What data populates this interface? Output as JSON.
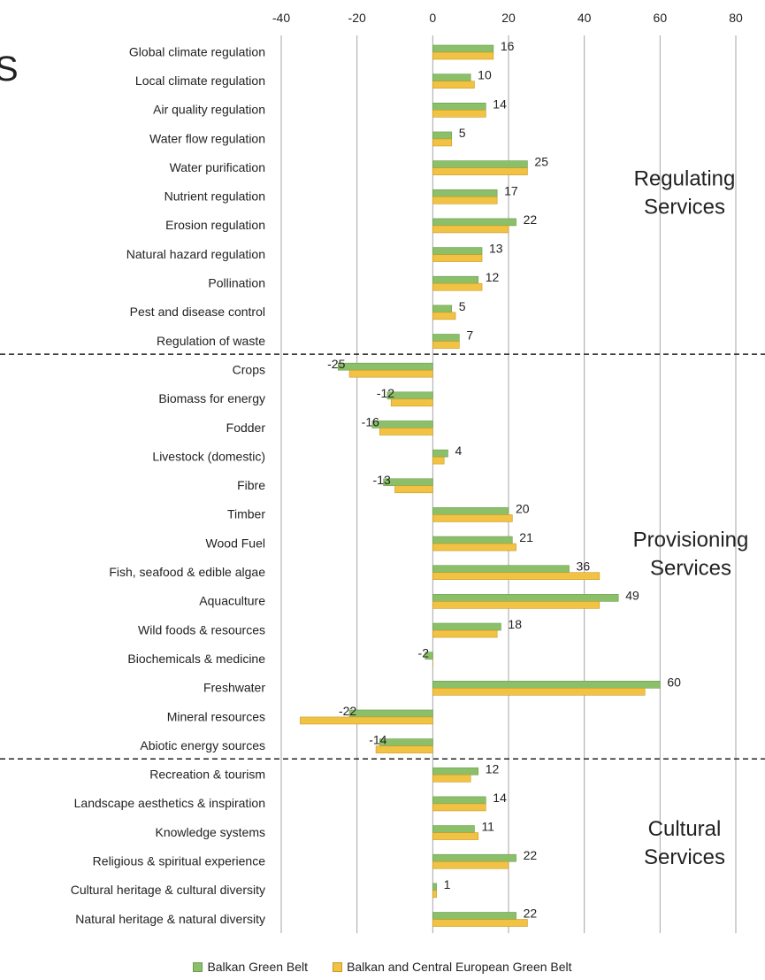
{
  "colors": {
    "balkan": "#8cbf6a",
    "balkan_central": "#f2c244",
    "grid": "#a6a6a6",
    "divider": "#222222"
  },
  "edge_fragment": "S",
  "chart_data": {
    "type": "bar",
    "orientation": "horizontal",
    "xlim": [
      -40,
      80
    ],
    "xticks": [
      -40,
      -20,
      0,
      20,
      40,
      60,
      80
    ],
    "categories": [
      "Global climate regulation",
      "Local climate regulation",
      "Air quality regulation",
      "Water flow regulation",
      "Water purification",
      "Nutrient regulation",
      "Erosion regulation",
      "Natural hazard regulation",
      "Pollination",
      "Pest and disease control",
      "Regulation of waste",
      "Crops",
      "Biomass for energy",
      "Fodder",
      "Livestock (domestic)",
      "Fibre",
      "Timber",
      "Wood Fuel",
      "Fish, seafood  & edible algae",
      "Aquaculture",
      "Wild foods & resources",
      "Biochemicals & medicine",
      "Freshwater",
      "Mineral resources",
      "Abiotic energy sources",
      "Recreation & tourism",
      "Landscape aesthetics & inspiration",
      "Knowledge systems",
      "Religious & spiritual experience",
      "Cultural heritage & cultural diversity",
      "Natural heritage & natural diversity"
    ],
    "series": [
      {
        "name": "Balkan Green Belt",
        "values": [
          16,
          10,
          14,
          5,
          25,
          17,
          22,
          13,
          12,
          5,
          7,
          -25,
          -12,
          -16,
          4,
          -13,
          20,
          21,
          36,
          49,
          18,
          -2,
          60,
          -22,
          -14,
          12,
          14,
          11,
          22,
          1,
          22
        ]
      },
      {
        "name": "Balkan and Central European Green Belt",
        "values": [
          16,
          11,
          14,
          5,
          25,
          17,
          20,
          13,
          13,
          6,
          7,
          -22,
          -11,
          -14,
          3,
          -10,
          21,
          22,
          44,
          44,
          17,
          0,
          56,
          -35,
          -15,
          10,
          14,
          12,
          20,
          1,
          25
        ]
      }
    ],
    "data_labels": [
      16,
      10,
      14,
      5,
      25,
      17,
      22,
      13,
      12,
      5,
      7,
      -25,
      -12,
      -16,
      4,
      -13,
      20,
      21,
      36,
      49,
      18,
      -2,
      60,
      -22,
      -14,
      12,
      14,
      11,
      22,
      1,
      22
    ],
    "groups": [
      {
        "lines": [
          "Regulating",
          "Services"
        ],
        "start": 0,
        "end": 10
      },
      {
        "lines": [
          "Provisioning",
          "Services"
        ],
        "start": 11,
        "end": 24
      },
      {
        "lines": [
          "Cultural",
          "Services"
        ],
        "start": 25,
        "end": 30
      }
    ],
    "grid": true,
    "legend_position": "bottom"
  }
}
